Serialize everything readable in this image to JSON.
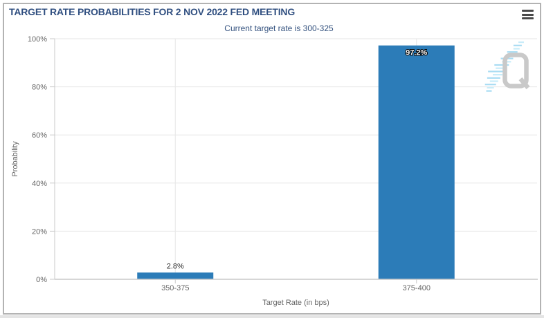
{
  "header": {
    "title": "TARGET RATE PROBABILITIES FOR 2 NOV 2022 FED MEETING",
    "subtitle": "Current target rate is 300-325"
  },
  "colors": {
    "title": "#304f80",
    "subtitle": "#33517e",
    "bar": "#2c7cb8",
    "grid": "#e6e6e6",
    "axis": "#c9c9c9",
    "tick_label": "#666666",
    "outside_label": "#333333",
    "inside_label": "#ffffff",
    "watermark_gray": "#c9c9c9",
    "watermark_hatch_dark": "#a9dcf3",
    "watermark_hatch_light": "#c9ecf9",
    "menu_icon": "#4a4a4a",
    "frame_border": "#b3b3b3"
  },
  "chart_data": {
    "type": "bar",
    "title": "TARGET RATE PROBABILITIES FOR 2 NOV 2022 FED MEETING",
    "subtitle": "Current target rate is 300-325",
    "categories": [
      "350-375",
      "375-400"
    ],
    "values": [
      2.8,
      97.2
    ],
    "value_labels": [
      "2.8%",
      "97.2%"
    ],
    "xlabel": "Target Rate (in bps)",
    "ylabel": "Probability",
    "ylim": [
      0,
      100
    ],
    "ytick_values": [
      0,
      20,
      40,
      60,
      80,
      100
    ],
    "ytick_labels": [
      "0%",
      "20%",
      "40%",
      "60%",
      "80%",
      "100%"
    ],
    "grid": true,
    "legend": "none",
    "bar_color": "#2c7cb8",
    "watermark": "Q"
  }
}
